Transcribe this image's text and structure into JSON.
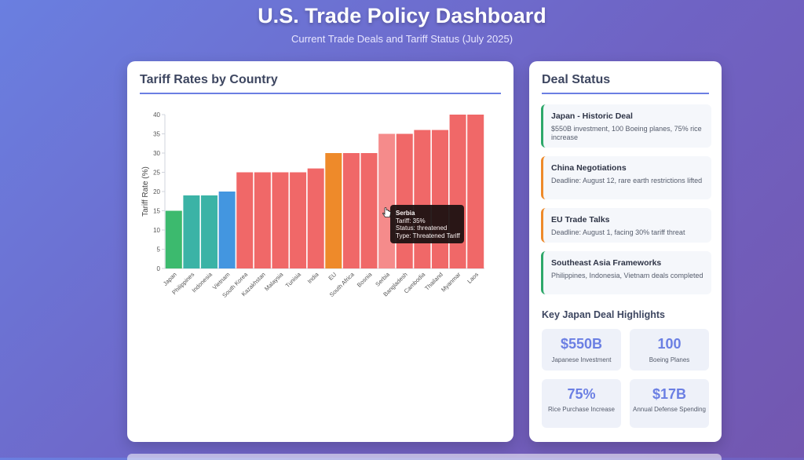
{
  "header": {
    "title": "U.S. Trade Policy Dashboard",
    "subtitle": "Current Trade Deals and Tariff Status (July 2025)"
  },
  "chart_panel": {
    "title": "Tariff Rates by Country"
  },
  "chart_data": {
    "type": "bar",
    "title": "",
    "xlabel": "",
    "ylabel": "Tariff Rate (%)",
    "ylim": [
      0,
      40
    ],
    "yticks": [
      0,
      5,
      10,
      15,
      20,
      25,
      30,
      35,
      40
    ],
    "categories": [
      "Japan",
      "Philippines",
      "Indonesia",
      "Vietnam",
      "South Korea",
      "Kazakhstan",
      "Malaysia",
      "Tunisia",
      "India",
      "EU",
      "South Africa",
      "Bosnia",
      "Serbia",
      "Bangladesh",
      "Cambodia",
      "Thailand",
      "Myanmar",
      "Laos"
    ],
    "values": [
      15,
      19,
      19,
      20,
      25,
      25,
      25,
      25,
      26,
      30,
      30,
      30,
      35,
      35,
      36,
      36,
      40,
      40
    ],
    "bar_colors": [
      "#3cba6e",
      "#3bb3a6",
      "#3bb3a6",
      "#4396e0",
      "#f06868",
      "#f06868",
      "#f06868",
      "#f06868",
      "#f06868",
      "#ee8a2a",
      "#f06868",
      "#f06868",
      "#f58b8b",
      "#f06868",
      "#f06868",
      "#f06868",
      "#f06868",
      "#f06868"
    ],
    "grid": false,
    "legend": "none",
    "tooltip": {
      "category": "Serbia",
      "tariff": "Tariff: 35%",
      "status": "Status: threatened",
      "type": "Type: Threatened Tariff"
    }
  },
  "deal_panel": {
    "title": "Deal Status",
    "deals": [
      {
        "title": "Japan - Historic Deal",
        "desc": "$550B investment, 100 Boeing planes, 75% rice increase",
        "accent": "#2ea86a"
      },
      {
        "title": "China Negotiations",
        "desc": "Deadline: August 12, rare earth restrictions lifted",
        "accent": "#ee8a2a"
      },
      {
        "title": "EU Trade Talks",
        "desc": "Deadline: August 1, facing 30% tariff threat",
        "accent": "#ee8a2a"
      },
      {
        "title": "Southeast Asia Frameworks",
        "desc": "Philippines, Indonesia, Vietnam deals completed",
        "accent": "#2ea86a"
      }
    ],
    "highlights_title": "Key Japan Deal Highlights",
    "stats": [
      {
        "value": "$550B",
        "label": "Japanese Investment"
      },
      {
        "value": "100",
        "label": "Boeing Planes"
      },
      {
        "value": "75%",
        "label": "Rice Purchase Increase"
      },
      {
        "value": "$17B",
        "label": "Annual Defense Spending"
      }
    ]
  }
}
